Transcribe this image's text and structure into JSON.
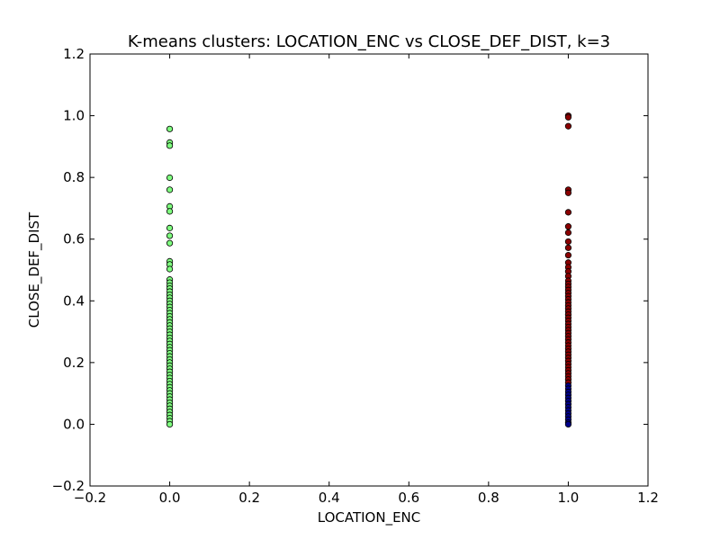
{
  "chart_data": {
    "type": "scatter",
    "title": "K-means clusters: LOCATION_ENC vs CLOSE_DEF_DIST, k=3",
    "xlabel": "LOCATION_ENC",
    "ylabel": "CLOSE_DEF_DIST",
    "xlim": [
      -0.2,
      1.2
    ],
    "ylim": [
      -0.2,
      1.2
    ],
    "xticks": [
      -0.2,
      0.0,
      0.2,
      0.4,
      0.6,
      0.8,
      1.0,
      1.2
    ],
    "yticks": [
      -0.2,
      0.0,
      0.2,
      0.4,
      0.6,
      0.8,
      1.0,
      1.2
    ],
    "xtick_labels": [
      "−0.2",
      "0.0",
      "0.2",
      "0.4",
      "0.6",
      "0.8",
      "1.0",
      "1.2"
    ],
    "ytick_labels": [
      "−0.2",
      "0.0",
      "0.2",
      "0.4",
      "0.6",
      "0.8",
      "1.0",
      "1.2"
    ],
    "grid": false,
    "legend": "none",
    "series": [
      {
        "color": "#7fff7f",
        "x_value": 0.0,
        "y": [
          0.957,
          0.913,
          0.903,
          0.799,
          0.76,
          0.706,
          0.69,
          0.636,
          0.611,
          0.587,
          0.528,
          0.518,
          0.503,
          0.469,
          0.459,
          0.449,
          0.44,
          0.43,
          0.42,
          0.41,
          0.4,
          0.39,
          0.38,
          0.37,
          0.36,
          0.35,
          0.34,
          0.33,
          0.32,
          0.31,
          0.3,
          0.29,
          0.28,
          0.27,
          0.26,
          0.25,
          0.24,
          0.23,
          0.22,
          0.21,
          0.2,
          0.19,
          0.18,
          0.17,
          0.16,
          0.15,
          0.14,
          0.13,
          0.12,
          0.11,
          0.1,
          0.09,
          0.08,
          0.07,
          0.06,
          0.05,
          0.04,
          0.03,
          0.02,
          0.01,
          0.0
        ]
      },
      {
        "color": "#8b0000",
        "x_value": 1.0,
        "y": [
          1.0,
          0.995,
          0.966,
          0.76,
          0.75,
          0.687,
          0.641,
          0.621,
          0.592,
          0.572,
          0.548,
          0.524,
          0.509,
          0.495,
          0.48,
          0.465,
          0.455,
          0.445,
          0.435,
          0.425,
          0.415,
          0.405,
          0.395,
          0.385,
          0.375,
          0.365,
          0.355,
          0.345,
          0.335,
          0.325,
          0.315,
          0.305,
          0.295,
          0.285,
          0.275,
          0.265,
          0.255,
          0.245,
          0.235,
          0.225,
          0.215,
          0.205,
          0.195,
          0.185,
          0.175,
          0.165,
          0.155,
          0.145,
          0.135
        ]
      },
      {
        "color": "#00008b",
        "x_value": 1.0,
        "y": [
          0.125,
          0.115,
          0.105,
          0.095,
          0.085,
          0.075,
          0.065,
          0.055,
          0.045,
          0.035,
          0.025,
          0.015,
          0.005,
          0.0
        ]
      }
    ]
  }
}
